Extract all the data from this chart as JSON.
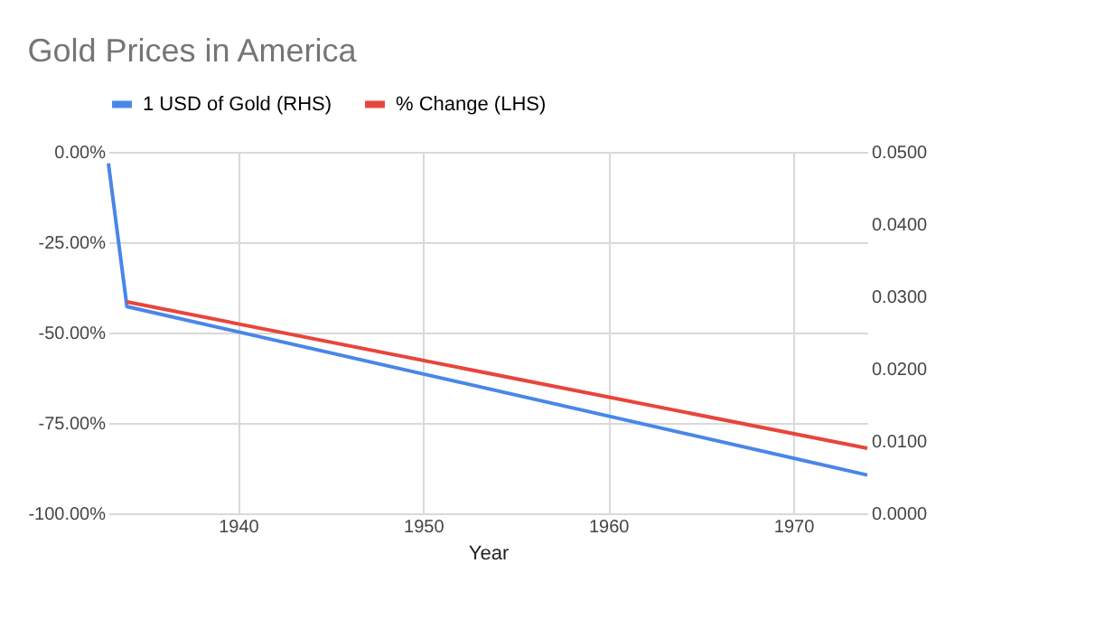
{
  "chart_data": {
    "type": "line",
    "title": "Gold Prices in America",
    "xlabel": "Year",
    "legend": "top",
    "grid": true,
    "xlim": [
      1933,
      1974
    ],
    "xticks": [
      1940,
      1950,
      1960,
      1970
    ],
    "ylim": [
      -100,
      0
    ],
    "yticks": [
      {
        "value": -100,
        "label": "-100.00%"
      },
      {
        "value": -75,
        "label": "-75.00%"
      },
      {
        "value": -50,
        "label": "-50.00%"
      },
      {
        "value": -25,
        "label": "-25.00%"
      },
      {
        "value": 0,
        "label": "0.00%"
      }
    ],
    "y2lim": [
      0,
      0.05
    ],
    "y2ticks": [
      {
        "value": 0,
        "label": "0.0000"
      },
      {
        "value": 0.01,
        "label": "0.0100"
      },
      {
        "value": 0.02,
        "label": "0.0200"
      },
      {
        "value": 0.03,
        "label": "0.0300"
      },
      {
        "value": 0.04,
        "label": "0.0400"
      },
      {
        "value": 0.05,
        "label": "0.0500"
      }
    ],
    "series": [
      {
        "name": "1 USD of Gold (RHS)",
        "color": "#4a86e8",
        "axis": "y2",
        "x": [
          1933,
          1934,
          1974
        ],
        "values": [
          0.0484,
          0.0286,
          0.0053
        ]
      },
      {
        "name": "% Change (LHS)",
        "color": "#e8453c",
        "axis": "y",
        "x": [
          1934,
          1974
        ],
        "values": [
          -41.5,
          -82
        ]
      }
    ]
  }
}
